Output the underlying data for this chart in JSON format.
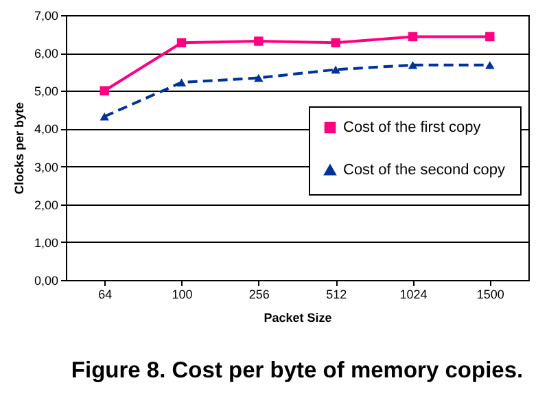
{
  "chart_data": {
    "type": "line",
    "title": "Figure 8. Cost per byte of memory copies.",
    "xlabel": "Packet Size",
    "ylabel": "Clocks per byte",
    "categories": [
      "64",
      "100",
      "256",
      "512",
      "1024",
      "1500"
    ],
    "series": [
      {
        "name": "Cost of the first copy",
        "color": "#ff0080",
        "marker": "square",
        "line_style": "solid",
        "values": [
          5.0,
          6.27,
          6.31,
          6.27,
          6.43,
          6.43
        ]
      },
      {
        "name": "Cost of the second copy",
        "color": "#003399",
        "marker": "triangle",
        "line_style": "dashed",
        "values": [
          4.32,
          5.22,
          5.34,
          5.56,
          5.68,
          5.68
        ]
      }
    ],
    "ylim": [
      0,
      7
    ],
    "yticks": [
      {
        "value": 0,
        "label": "0,00"
      },
      {
        "value": 1,
        "label": "1,00"
      },
      {
        "value": 2,
        "label": "2,00"
      },
      {
        "value": 3,
        "label": "3,00"
      },
      {
        "value": 4,
        "label": "4,00"
      },
      {
        "value": 5,
        "label": "5,00"
      },
      {
        "value": 6,
        "label": "6,00"
      },
      {
        "value": 7,
        "label": "7,00"
      }
    ],
    "grid": "y",
    "legend": "right"
  }
}
